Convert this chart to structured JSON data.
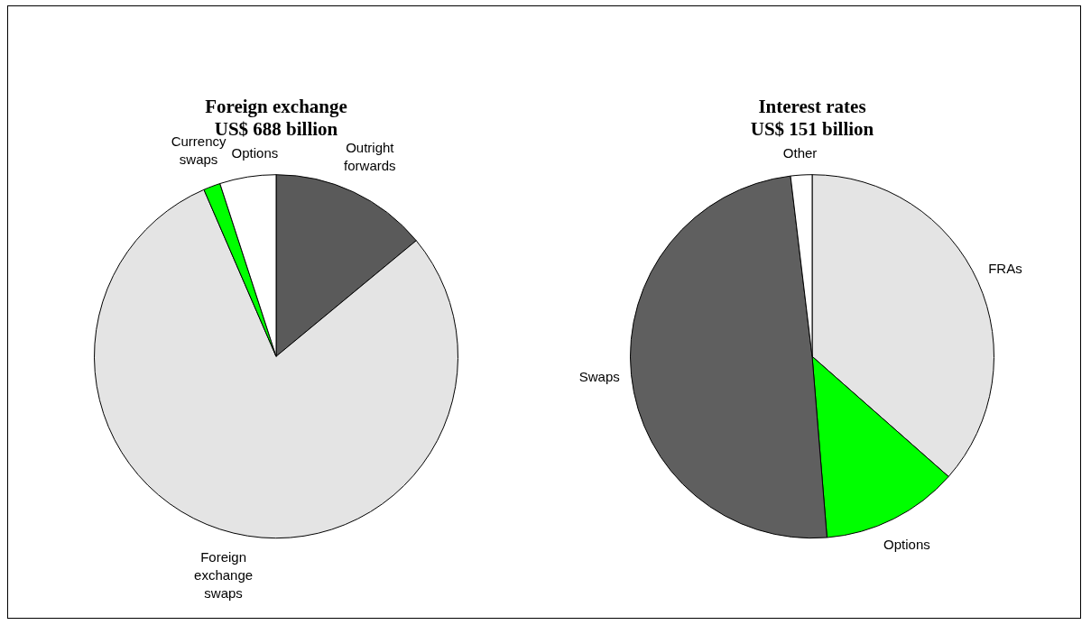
{
  "chart_data": [
    {
      "type": "pie",
      "title": "Foreign exchange",
      "subtitle": "US$ 688 billion",
      "categories": [
        "Outright forwards",
        "Foreign exchange swaps",
        "Currency swaps",
        "Options"
      ],
      "values": [
        14,
        79.5,
        1.5,
        5
      ],
      "colors": [
        "#5a5a5a",
        "#e4e4e4",
        "#00ff00",
        "#ffffff"
      ],
      "legend": false
    },
    {
      "type": "pie",
      "title": "Interest rates",
      "subtitle": "US$ 151 billion",
      "categories": [
        "FRAs",
        "Options",
        "Swaps",
        "Other"
      ],
      "values": [
        36.5,
        12.2,
        49.4,
        1.9
      ],
      "colors": [
        "#e4e4e4",
        "#00ff00",
        "#5f5f5f",
        "#ffffff"
      ],
      "legend": false
    }
  ]
}
